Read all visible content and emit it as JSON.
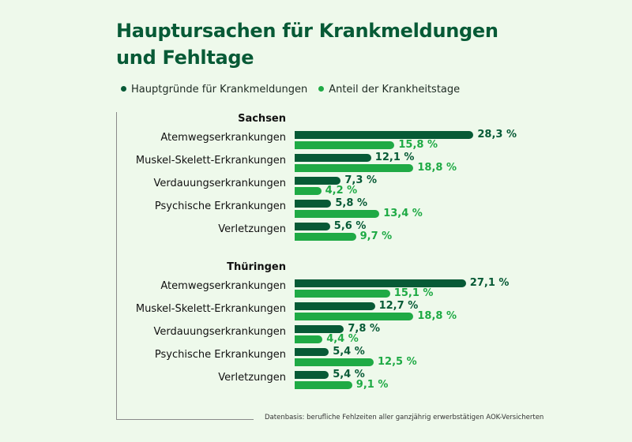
{
  "chart_data": {
    "type": "bar",
    "orientation": "horizontal",
    "title_lines": [
      "Hauptursachen für Krankmeldungen",
      "und Fehltage"
    ],
    "unit": "%",
    "colors": {
      "Hauptgründe für Krankmeldungen": "#075a36",
      "Anteil der Krankheitstage": "#1faa45"
    },
    "legend": [
      "Hauptgründe für Krankmeldungen",
      "Anteil der Krankheitstage"
    ],
    "legend_placement": "top-left",
    "grid": false,
    "groups": [
      {
        "region": "Sachsen",
        "categories": [
          "Atemwegserkrankungen",
          "Muskel-Skelett-Erkrankungen",
          "Verdauungserkrankungen",
          "Psychische Erkrankungen",
          "Verletzungen"
        ],
        "series": [
          {
            "name": "Hauptgründe für Krankmeldungen",
            "values": [
              28.3,
              12.1,
              7.3,
              5.8,
              5.6
            ],
            "labels": [
              "28,3 %",
              "12,1 %",
              "7,3 %",
              "5,8 %",
              "5,6 %"
            ]
          },
          {
            "name": "Anteil der Krankheitstage",
            "values": [
              15.8,
              18.8,
              4.2,
              13.4,
              9.7
            ],
            "labels": [
              "15,8 %",
              "18,8 %",
              "4,2 %",
              "13,4 %",
              "9,7 %"
            ]
          }
        ]
      },
      {
        "region": "Thüringen",
        "categories": [
          "Atemwegserkrankungen",
          "Muskel-Skelett-Erkrankungen",
          "Verdauungserkrankungen",
          "Psychische Erkrankungen",
          "Verletzungen"
        ],
        "series": [
          {
            "name": "Hauptgründe für Krankmeldungen",
            "values": [
              27.1,
              12.7,
              7.8,
              5.4,
              5.4
            ],
            "labels": [
              "27,1 %",
              "12,7 %",
              "7,8 %",
              "5,4 %",
              "5,4 %"
            ]
          },
          {
            "name": "Anteil der Krankheitstage",
            "values": [
              15.1,
              18.8,
              4.4,
              12.5,
              9.1
            ],
            "labels": [
              "15,1 %",
              "18,8 %",
              "4,4 %",
              "12,5 %",
              "9,1 %"
            ]
          }
        ]
      }
    ],
    "footnote": "Datenbasis: berufliche Fehlzeiten aller ganzjährig erwerbstätigen AOK-Versicherten"
  }
}
